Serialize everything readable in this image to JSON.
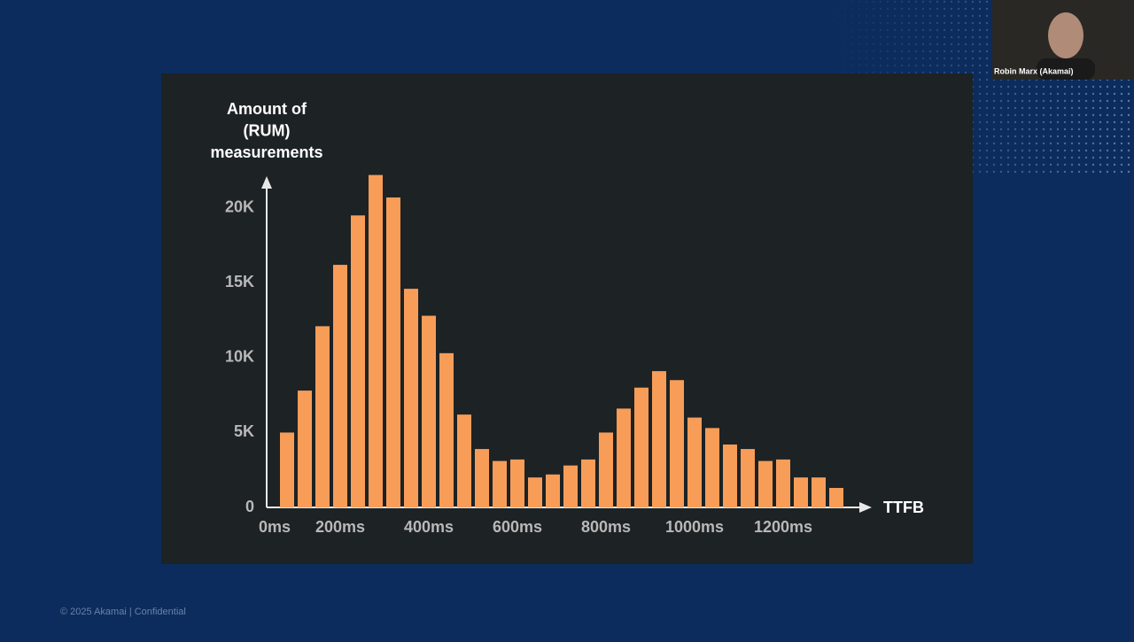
{
  "chart_data": {
    "type": "bar",
    "ylabel": [
      "Amount of",
      "(RUM)",
      "measurements"
    ],
    "xlabel": "TTFB",
    "categories": [
      "0ms",
      null,
      null,
      "200ms",
      null,
      null,
      null,
      null,
      "400ms",
      null,
      null,
      null,
      null,
      "600ms",
      null,
      null,
      null,
      null,
      "800ms",
      null,
      null,
      null,
      null,
      "1000ms",
      null,
      null,
      null,
      null,
      "1200ms",
      null,
      null,
      null
    ],
    "values": [
      5000,
      7800,
      12100,
      16200,
      19500,
      22200,
      20700,
      14600,
      12800,
      10300,
      6200,
      3900,
      3100,
      3200,
      2000,
      2200,
      2800,
      3200,
      5000,
      6600,
      8000,
      9100,
      8500,
      6000,
      5300,
      4200,
      3900,
      3100,
      3200,
      2000,
      2000,
      1300
    ],
    "color": "#f89d58",
    "ylim": [
      0,
      22000
    ],
    "yticks": [
      0,
      {
        "value": 5000,
        "label": "5K"
      },
      {
        "value": 10000,
        "label": "10K"
      },
      {
        "value": 15000,
        "label": "15K"
      },
      {
        "value": 20000,
        "label": "20K"
      }
    ],
    "grid": false
  },
  "participant": {
    "name": "Robin Marx (Akamai)"
  },
  "footer": "© 2025 Akamai | Confidential"
}
